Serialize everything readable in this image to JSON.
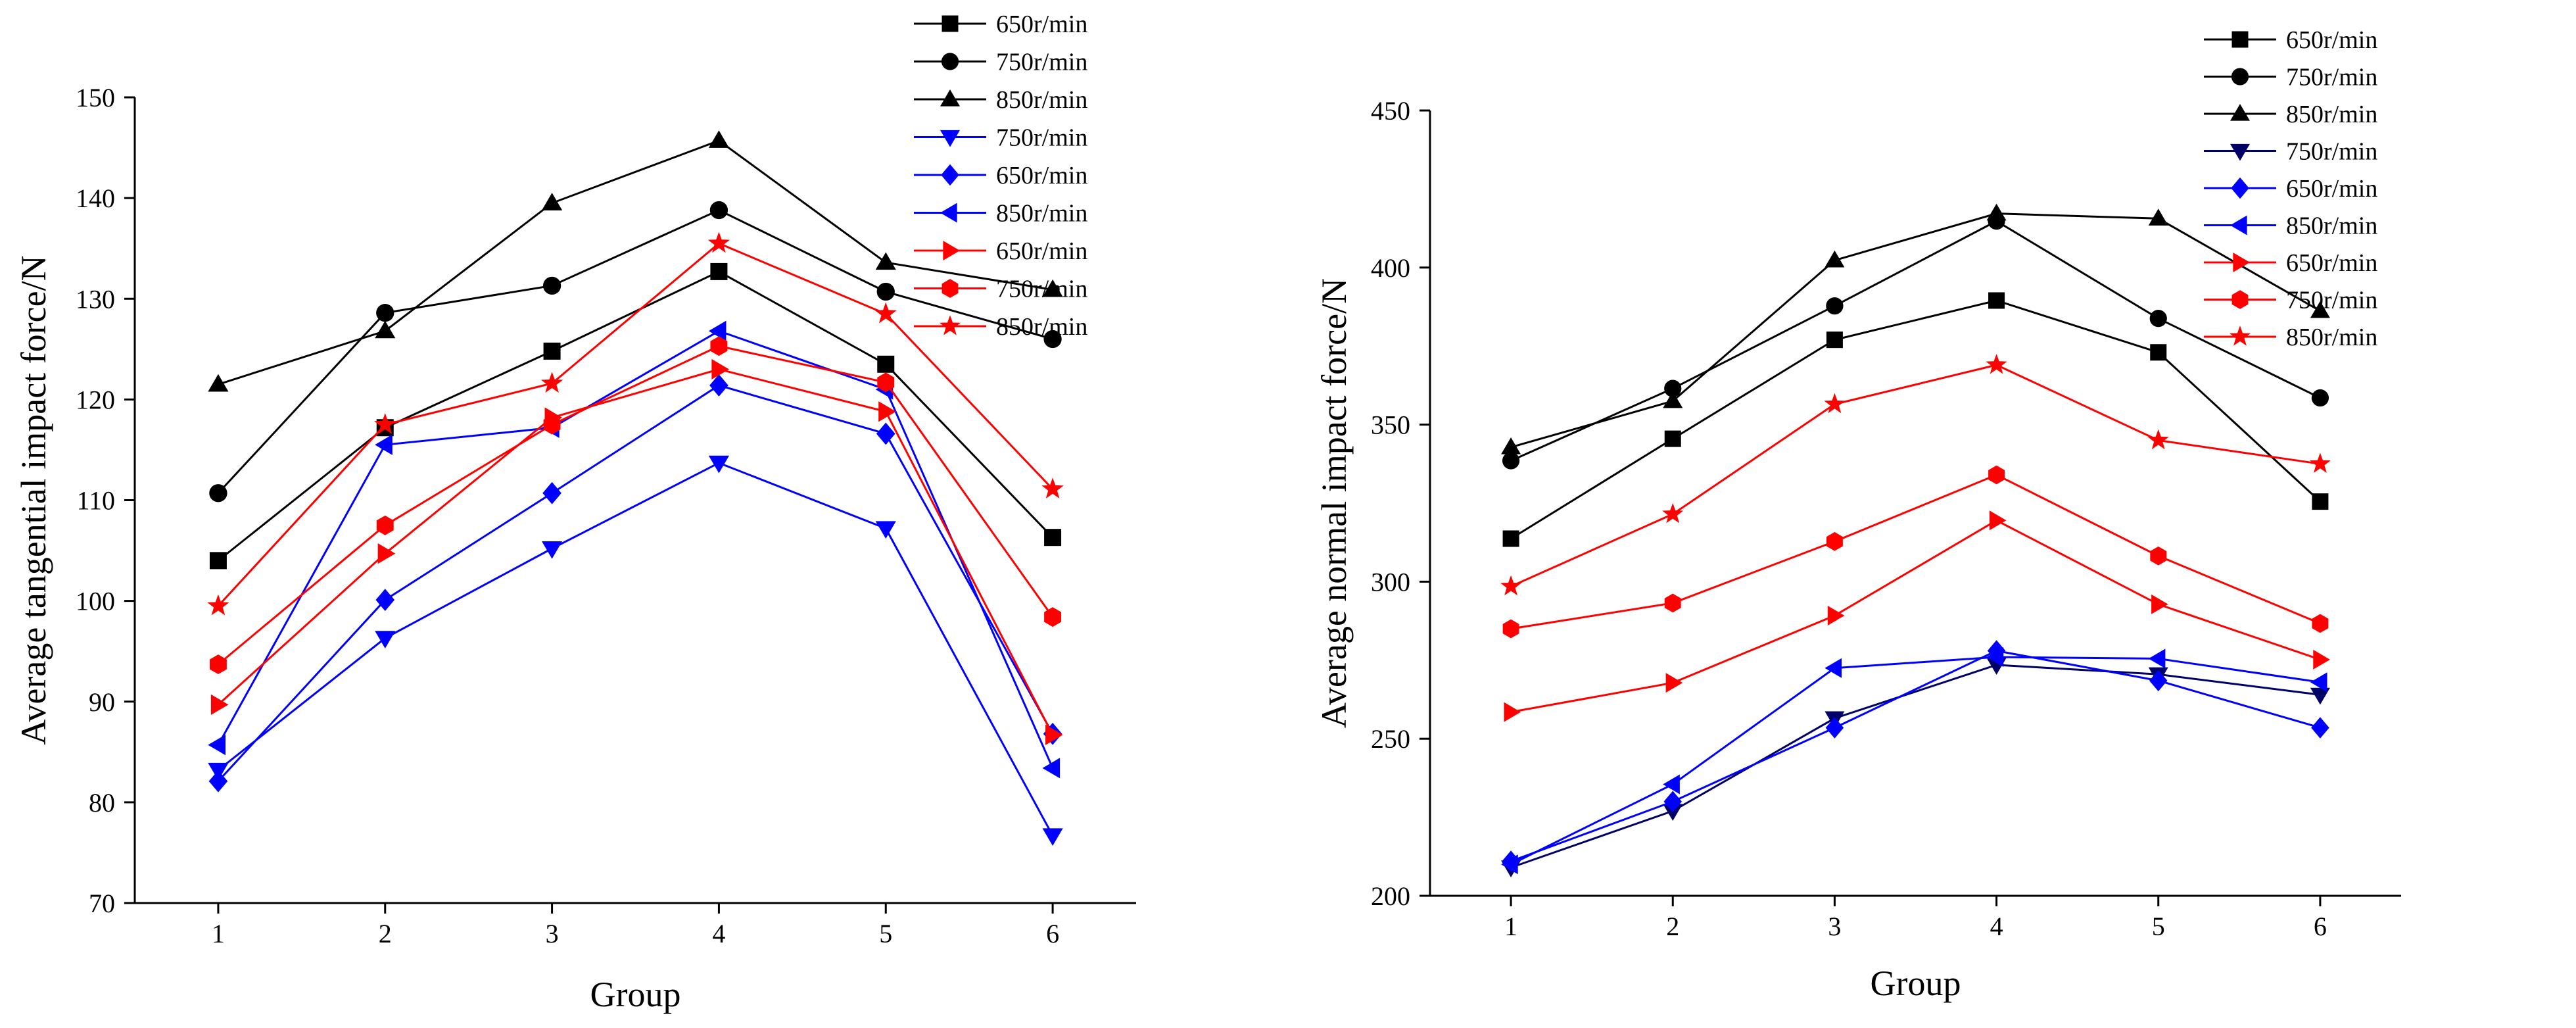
{
  "chart_data": [
    {
      "type": "line",
      "title": "",
      "xlabel": "Group",
      "ylabel": "Average tangential impact force/N",
      "categories": [
        "1",
        "2",
        "3",
        "4",
        "5",
        "6"
      ],
      "xlim": [
        0.5,
        6.5
      ],
      "ylim": [
        70,
        150
      ],
      "yticks": [
        70,
        80,
        90,
        100,
        110,
        120,
        130,
        140,
        150
      ],
      "grid": false,
      "legend_position": "top-right, outside plot",
      "series": [
        {
          "name": "650r/min",
          "color": "#000000",
          "marker": "square",
          "values": [
            104.0,
            117.2,
            124.8,
            132.7,
            123.5,
            106.3
          ]
        },
        {
          "name": "750r/min",
          "color": "#000000",
          "marker": "circle",
          "values": [
            110.7,
            128.6,
            131.3,
            138.8,
            130.7,
            126.0
          ]
        },
        {
          "name": "850r/min",
          "color": "#000000",
          "marker": "triangle-up",
          "values": [
            121.5,
            126.8,
            139.5,
            145.7,
            133.6,
            130.9
          ]
        },
        {
          "name": "750r/min",
          "color": "#0000ff",
          "marker": "triangle-down",
          "values": [
            83.2,
            96.3,
            105.2,
            113.7,
            107.2,
            76.7
          ]
        },
        {
          "name": "650r/min",
          "color": "#0000ff",
          "marker": "diamond",
          "values": [
            82.1,
            100.1,
            110.7,
            121.4,
            116.6,
            86.8
          ]
        },
        {
          "name": "850r/min",
          "color": "#0000ff",
          "marker": "triangle-left",
          "values": [
            85.7,
            115.5,
            117.2,
            126.8,
            121.0,
            83.4
          ]
        },
        {
          "name": "650r/min",
          "color": "#ff0000",
          "marker": "triangle-right",
          "values": [
            89.7,
            104.7,
            118.2,
            123.0,
            118.8,
            86.7
          ]
        },
        {
          "name": "750r/min",
          "color": "#ff0000",
          "marker": "hexagon",
          "values": [
            93.7,
            107.5,
            117.5,
            125.3,
            121.7,
            98.4
          ]
        },
        {
          "name": "850r/min",
          "color": "#ff0000",
          "marker": "star",
          "values": [
            99.5,
            117.5,
            121.6,
            135.5,
            128.5,
            111.1
          ]
        }
      ]
    },
    {
      "type": "line",
      "title": "",
      "xlabel": "Group",
      "ylabel": "Average normal impact force/N",
      "categories": [
        "1",
        "2",
        "3",
        "4",
        "5",
        "6"
      ],
      "xlim": [
        0.5,
        6.5
      ],
      "ylim": [
        200,
        450
      ],
      "yticks": [
        200,
        250,
        300,
        350,
        400,
        450
      ],
      "grid": false,
      "legend_position": "top-right",
      "series": [
        {
          "name": "650r/min",
          "color": "#000000",
          "marker": "square",
          "values": [
            313.7,
            345.5,
            377.0,
            389.5,
            373.0,
            325.5
          ]
        },
        {
          "name": "750r/min",
          "color": "#000000",
          "marker": "circle",
          "values": [
            338.5,
            361.5,
            387.8,
            414.8,
            383.8,
            358.5
          ]
        },
        {
          "name": "850r/min",
          "color": "#000000",
          "marker": "triangle-up",
          "values": [
            342.8,
            357.5,
            402.3,
            417.2,
            415.6,
            386.2
          ]
        },
        {
          "name": "750r/min",
          "color": "#000066",
          "marker": "triangle-down",
          "values": [
            209.0,
            227.0,
            256.5,
            273.5,
            270.5,
            264.0
          ]
        },
        {
          "name": "650r/min",
          "color": "#0000ff",
          "marker": "diamond",
          "values": [
            211.0,
            230.0,
            253.5,
            278.0,
            268.5,
            253.5
          ]
        },
        {
          "name": "850r/min",
          "color": "#0000ff",
          "marker": "triangle-left",
          "values": [
            210.0,
            235.5,
            272.5,
            276.0,
            275.5,
            268.0
          ]
        },
        {
          "name": "650r/min",
          "color": "#ff0000",
          "marker": "triangle-right",
          "values": [
            258.5,
            267.8,
            289.2,
            319.5,
            292.8,
            275.2
          ]
        },
        {
          "name": "750r/min",
          "color": "#ff0000",
          "marker": "hexagon",
          "values": [
            285.0,
            293.2,
            312.8,
            334.0,
            308.2,
            286.7
          ]
        },
        {
          "name": "850r/min",
          "color": "#ff0000",
          "marker": "star",
          "values": [
            298.5,
            321.5,
            356.5,
            369.0,
            345.0,
            337.5
          ]
        }
      ]
    }
  ]
}
